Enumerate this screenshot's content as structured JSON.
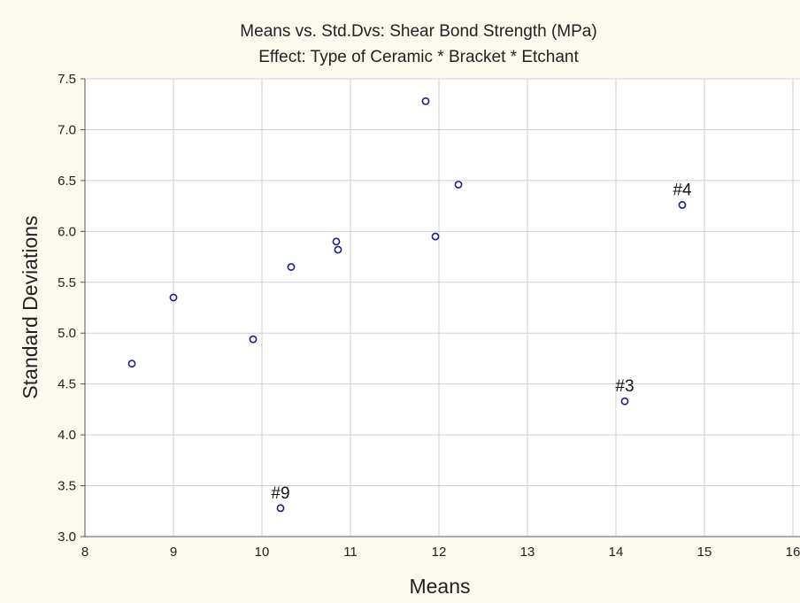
{
  "chart_data": {
    "type": "scatter",
    "title": "Means vs. Std.Dvs: Shear Bond Strength (MPa)",
    "subtitle": "Effect: Type of Ceramic * Bracket * Etchant",
    "xlabel": "Means",
    "ylabel": "Standard Deviations",
    "xlim": [
      8,
      16
    ],
    "ylim": [
      3.0,
      7.5
    ],
    "xticks": [
      "8",
      "9",
      "10",
      "11",
      "12",
      "13",
      "14",
      "15",
      "16"
    ],
    "yticks": [
      "3.0",
      "3.5",
      "4.0",
      "4.5",
      "5.0",
      "5.5",
      "6.0",
      "6.5",
      "7.0",
      "7.5"
    ],
    "grid": true,
    "colors": {
      "background": "#fcf9ef",
      "plot_area": "#ffffff",
      "grid": "#d0d0d0",
      "marker": "#1c1c8c"
    },
    "points": [
      {
        "x": 8.53,
        "y": 4.7
      },
      {
        "x": 9.0,
        "y": 5.35
      },
      {
        "x": 9.9,
        "y": 4.94
      },
      {
        "x": 10.33,
        "y": 5.65
      },
      {
        "x": 10.84,
        "y": 5.9
      },
      {
        "x": 10.86,
        "y": 5.82
      },
      {
        "x": 11.85,
        "y": 7.28
      },
      {
        "x": 11.96,
        "y": 5.95
      },
      {
        "x": 12.22,
        "y": 6.46
      },
      {
        "x": 14.1,
        "y": 4.33
      },
      {
        "x": 14.75,
        "y": 6.26
      },
      {
        "x": 10.21,
        "y": 3.28
      }
    ],
    "annotations": [
      {
        "label": "#9",
        "x": 10.21,
        "y": 3.28
      },
      {
        "label": "#3",
        "x": 14.1,
        "y": 4.33
      },
      {
        "label": "#4",
        "x": 14.75,
        "y": 6.26
      }
    ]
  }
}
